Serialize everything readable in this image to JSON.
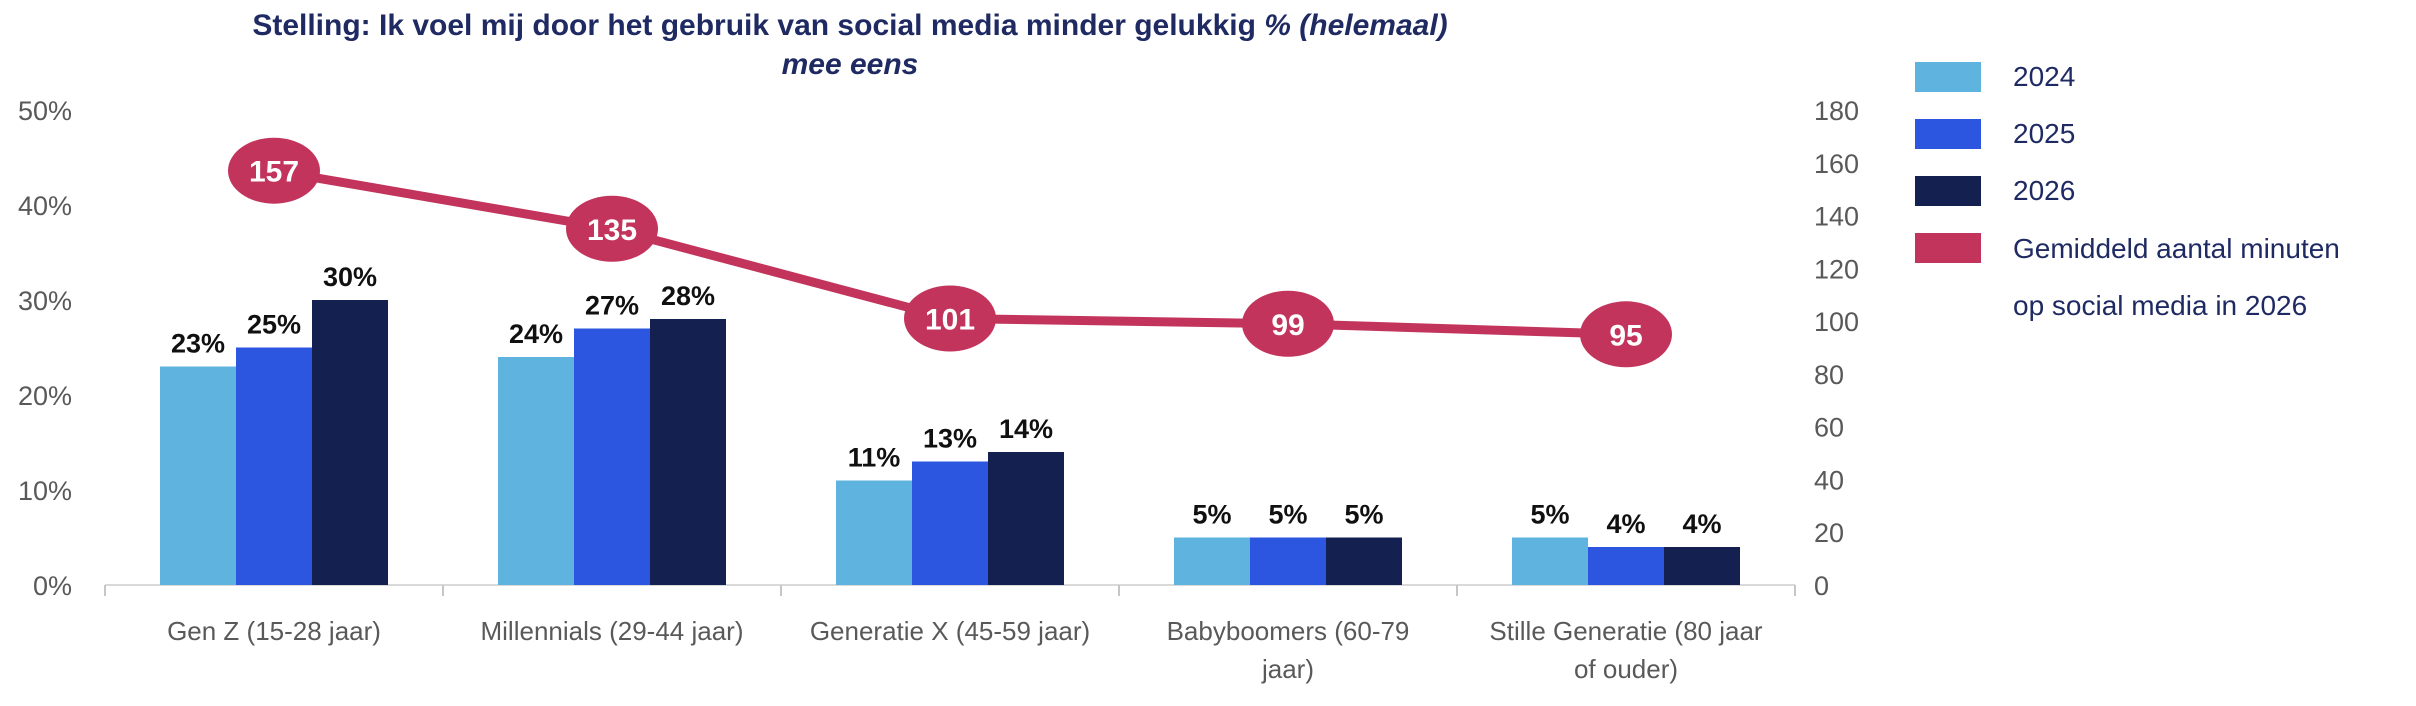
{
  "title": {
    "normal": "Stelling: Ik voel mij door het gebruik van social media minder gelukkig ",
    "italic": "% (helemaal)",
    "italic_line2": "mee eens"
  },
  "legend": {
    "position": "right",
    "items": [
      {
        "label": "2024",
        "color": "#5FB3DF"
      },
      {
        "label": "2025",
        "color": "#2C55E0"
      },
      {
        "label": "2026",
        "color": "#14204F"
      },
      {
        "label": "Gemiddeld aantal minuten op social media in 2026",
        "color": "#C2345C"
      }
    ]
  },
  "chart_data": {
    "type": "bar",
    "subtype": "grouped-bars-with-line-overlay",
    "title": "Stelling: Ik voel mij door het gebruik van social media minder gelukkig % (helemaal) mee eens",
    "categories": [
      "Gen Z (15-28 jaar)",
      "Millennials (29-44 jaar)",
      "Generatie X (45-59 jaar)",
      "Babyboomers (60-79 jaar)",
      "Stille Generatie (80 jaar of ouder)"
    ],
    "category_label_lines": [
      [
        "Gen Z (15-28 jaar)"
      ],
      [
        "Millennials (29-44 jaar)"
      ],
      [
        "Generatie X (45-59 jaar)"
      ],
      [
        "Babyboomers (60-79",
        "jaar)"
      ],
      [
        "Stille Generatie (80 jaar",
        "of ouder)"
      ]
    ],
    "series": [
      {
        "name": "2024",
        "color": "#5FB3DF",
        "unit": "%",
        "values": [
          23,
          24,
          11,
          5,
          5
        ]
      },
      {
        "name": "2025",
        "color": "#2C55E0",
        "unit": "%",
        "values": [
          25,
          27,
          13,
          5,
          4
        ]
      },
      {
        "name": "2026",
        "color": "#14204F",
        "unit": "%",
        "values": [
          30,
          28,
          14,
          5,
          4
        ]
      }
    ],
    "line_series": {
      "name": "Gemiddeld aantal minuten op social media in 2026",
      "color": "#C2345C",
      "axis": "right",
      "values": [
        157,
        135,
        101,
        99,
        95
      ]
    },
    "left_axis": {
      "min": 0,
      "max": 50,
      "step": 10,
      "suffix": "%",
      "tick_labels": [
        "0%",
        "10%",
        "20%",
        "30%",
        "40%",
        "50%"
      ]
    },
    "right_axis": {
      "min": 0,
      "max": 180,
      "step": 20,
      "tick_labels": [
        "0",
        "20",
        "40",
        "60",
        "80",
        "100",
        "120",
        "140",
        "160",
        "180"
      ]
    },
    "grid": false,
    "legend_position": "right",
    "axis_text_color": "#595959",
    "axis_line_color": "#D9D9D9"
  }
}
